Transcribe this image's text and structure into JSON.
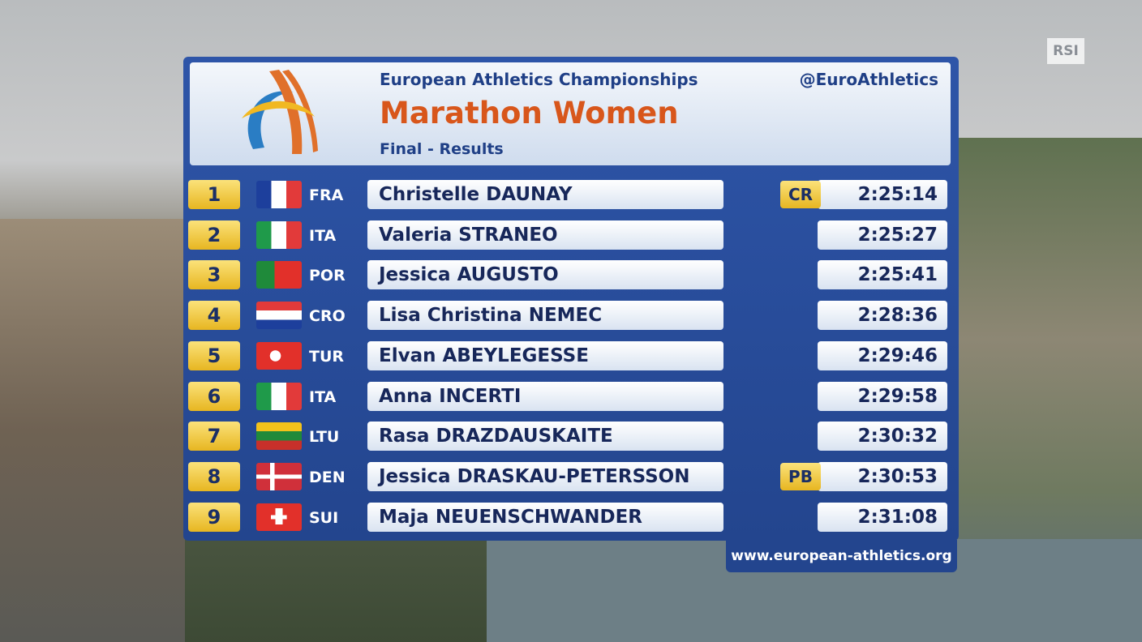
{
  "broadcaster": "RSI",
  "header": {
    "organizer": "European Athletics Championships",
    "handle": "@EuroAthletics",
    "title": "Marathon Women",
    "subtitle": "Final - Results"
  },
  "rows": [
    {
      "rank": "1",
      "country": "FRA",
      "name": "Christelle DAUNAY",
      "record": "CR",
      "time": "2:25:14"
    },
    {
      "rank": "2",
      "country": "ITA",
      "name": "Valeria STRANEO",
      "time": "2:25:27"
    },
    {
      "rank": "3",
      "country": "POR",
      "name": "Jessica AUGUSTO",
      "time": "2:25:41"
    },
    {
      "rank": "4",
      "country": "CRO",
      "name": "Lisa Christina NEMEC",
      "time": "2:28:36"
    },
    {
      "rank": "5",
      "country": "TUR",
      "name": "Elvan ABEYLEGESSE",
      "time": "2:29:46"
    },
    {
      "rank": "6",
      "country": "ITA",
      "name": "Anna INCERTI",
      "time": "2:29:58"
    },
    {
      "rank": "7",
      "country": "LTU",
      "name": "Rasa DRAZDAUSKAITE",
      "time": "2:30:32"
    },
    {
      "rank": "8",
      "country": "DEN",
      "name": "Jessica DRASKAU-PETERSSON",
      "record": "PB",
      "time": "2:30:53"
    },
    {
      "rank": "9",
      "country": "SUI",
      "name": "Maja NEUENSCHWANDER",
      "time": "2:31:08"
    }
  ],
  "footer": {
    "url": "www.european-athletics.org"
  }
}
